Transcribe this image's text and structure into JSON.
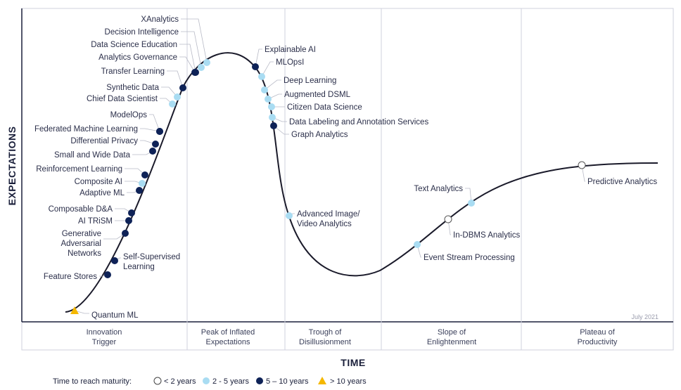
{
  "axes": {
    "y_label": "EXPECTATIONS",
    "x_label": "TIME"
  },
  "date": "July 2021",
  "phases": [
    {
      "id": "innovation",
      "lines": [
        "Innovation",
        "Trigger"
      ]
    },
    {
      "id": "peak",
      "lines": [
        "Peak of Inflated",
        "Expectations"
      ]
    },
    {
      "id": "trough",
      "lines": [
        "Trough of",
        "Disillusionment"
      ]
    },
    {
      "id": "slope",
      "lines": [
        "Slope of",
        "Enlightenment"
      ]
    },
    {
      "id": "plateau",
      "lines": [
        "Plateau of",
        "Productivity"
      ]
    }
  ],
  "legend": {
    "title": "Time to reach maturity:",
    "items": [
      {
        "key": "lt2",
        "label": "< 2 years"
      },
      {
        "key": "2to5",
        "label": "2 - 5 years"
      },
      {
        "key": "5to10",
        "label": "5 – 10 years"
      },
      {
        "key": "gt10",
        "label": "> 10 years"
      }
    ]
  },
  "colors": {
    "lt2": "#ffffff",
    "2to5": "#a9dcf2",
    "5to10": "#0e2257",
    "gt10": "#f5b800",
    "curve": "#1a1a2a",
    "grid": "#cfd1dd"
  },
  "technologies": [
    {
      "name": "XAnalytics",
      "category": "2to5"
    },
    {
      "name": "Decision Intelligence",
      "category": "2to5"
    },
    {
      "name": "Data Science Education",
      "category": "5to10"
    },
    {
      "name": "Analytics Governance",
      "category": "5to10"
    },
    {
      "name": "Transfer Learning",
      "category": "5to10"
    },
    {
      "name": "Synthetic Data",
      "category": "2to5"
    },
    {
      "name": "Chief Data Scientist",
      "category": "2to5"
    },
    {
      "name": "ModelOps",
      "category": "5to10"
    },
    {
      "name": "Federated Machine Learning",
      "category": "5to10"
    },
    {
      "name": "Differential Privacy",
      "category": "5to10"
    },
    {
      "name": "Small and Wide Data",
      "category": "5to10"
    },
    {
      "name": "Reinforcement Learning",
      "category": "5to10"
    },
    {
      "name": "Composite AI",
      "category": "2to5"
    },
    {
      "name": "Adaptive ML",
      "category": "5to10"
    },
    {
      "name": "Composable D&A",
      "category": "5to10"
    },
    {
      "name": "AI TRiSM",
      "category": "5to10"
    },
    {
      "name": "Generative Adversarial Networks",
      "category": "5to10",
      "lines": [
        "Generative",
        "Adversarial",
        "Networks"
      ]
    },
    {
      "name": "Self-Supervised Learning",
      "category": "5to10",
      "lines": [
        "Self-Supervised",
        "Learning"
      ]
    },
    {
      "name": "Feature Stores",
      "category": "5to10"
    },
    {
      "name": "Quantum ML",
      "category": "gt10"
    },
    {
      "name": "Explainable AI",
      "category": "5to10"
    },
    {
      "name": "MLOpsI",
      "category": "2to5"
    },
    {
      "name": "Deep Learning",
      "category": "2to5"
    },
    {
      "name": "Augmented DSML",
      "category": "2to5"
    },
    {
      "name": "Citizen Data Science",
      "category": "2to5"
    },
    {
      "name": "Data Labeling and Annotation Services",
      "category": "2to5"
    },
    {
      "name": "Graph Analytics",
      "category": "5to10"
    },
    {
      "name": "Advanced Image/ Video Analytics",
      "category": "2to5",
      "lines": [
        "Advanced Image/",
        "Video Analytics"
      ]
    },
    {
      "name": "Event Stream Processing",
      "category": "2to5"
    },
    {
      "name": "In-DBMS Analytics",
      "category": "lt2"
    },
    {
      "name": "Text Analytics",
      "category": "2to5"
    },
    {
      "name": "Predictive Analytics",
      "category": "lt2"
    }
  ]
}
